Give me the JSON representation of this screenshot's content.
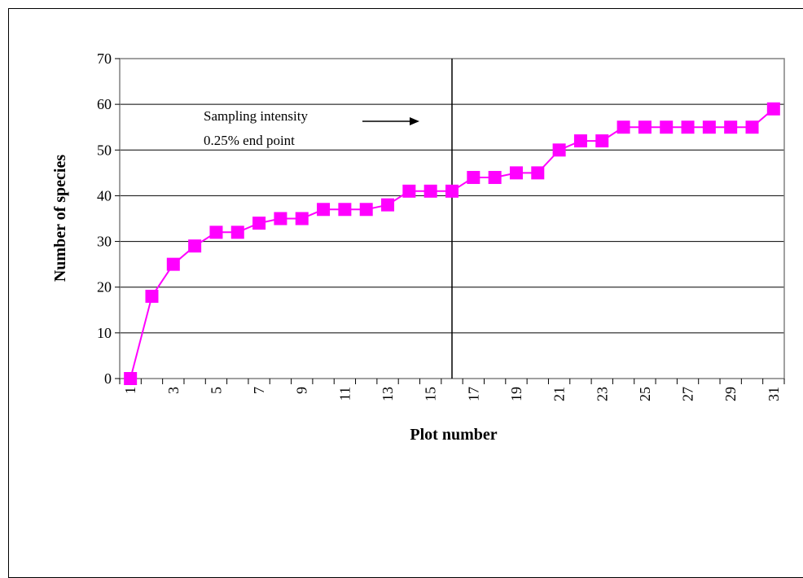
{
  "chart_data": {
    "type": "line",
    "title": "",
    "xlabel": "Plot number",
    "ylabel": "Number of species",
    "ylim": [
      0,
      70
    ],
    "yticks": [
      0,
      10,
      20,
      30,
      40,
      50,
      60,
      70
    ],
    "x": [
      1,
      2,
      3,
      4,
      5,
      6,
      7,
      8,
      9,
      10,
      11,
      12,
      13,
      14,
      15,
      16,
      17,
      18,
      19,
      20,
      21,
      22,
      23,
      24,
      25,
      26,
      27,
      28,
      29,
      30,
      31
    ],
    "x_tick_labels": [
      "1",
      "3",
      "5",
      "7",
      "9",
      "11",
      "13",
      "15",
      "17",
      "19",
      "21",
      "23",
      "25",
      "27",
      "29",
      "31"
    ],
    "series": [
      {
        "values": [
          0,
          18,
          25,
          29,
          32,
          32,
          34,
          35,
          35,
          37,
          37,
          37,
          38,
          41,
          41,
          41,
          44,
          44,
          45,
          45,
          50,
          52,
          52,
          55,
          55,
          55,
          55,
          55,
          55,
          55,
          59
        ],
        "color": "#ff00ff",
        "marker": "square"
      }
    ],
    "grid": "horizontal",
    "vertical_line_x": 16,
    "annotation": {
      "line1": "Sampling intensity",
      "line2": "0.25% end point"
    }
  }
}
